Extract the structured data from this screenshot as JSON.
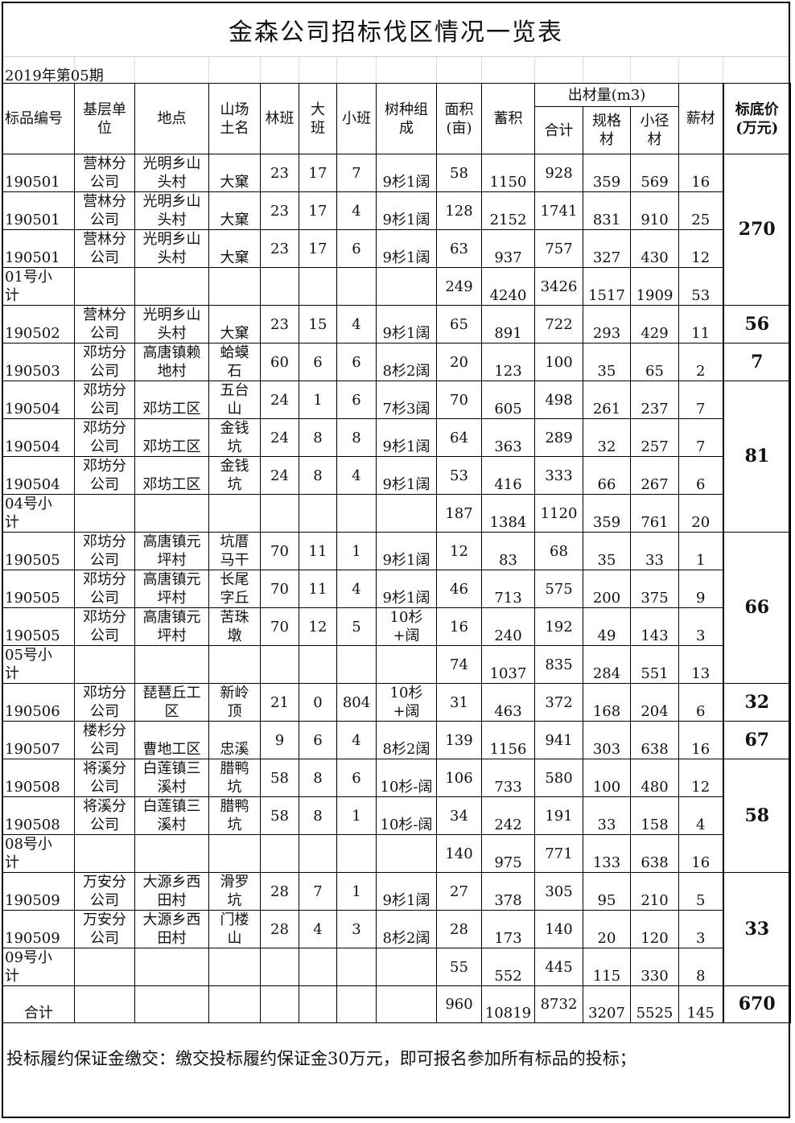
{
  "title": "金森公司招标伐区情况一览表",
  "period": "2019年第05期",
  "headers": {
    "id": "标品编号",
    "unit": "基层单\n位",
    "place": "地点",
    "name": "山场\n土名",
    "linban": "林班",
    "daban": "大\n班",
    "xiaoban": "小班",
    "species": "树种组\n成",
    "area": "面积\n(亩)",
    "stock": "蓄积",
    "output": "出材量(m3)",
    "total": "合计",
    "guige": "规格\n材",
    "xiaojing": "小径\n材",
    "xin": "薪材",
    "price": "标底价\n(万元)"
  },
  "rows": [
    [
      "190501",
      "营林分\n公司",
      "光明乡山\n头村",
      "大窠",
      "23",
      "17",
      "7",
      "9杉1阔",
      "58",
      "1150",
      "928",
      "359",
      "569",
      "16"
    ],
    [
      "190501",
      "营林分\n公司",
      "光明乡山\n头村",
      "大窠",
      "23",
      "17",
      "4",
      "9杉1阔",
      "128",
      "2152",
      "1741",
      "831",
      "910",
      "25"
    ],
    [
      "190501",
      "营林分\n公司",
      "光明乡山\n头村",
      "大窠",
      "23",
      "17",
      "6",
      "9杉1阔",
      "63",
      "937",
      "757",
      "327",
      "430",
      "12"
    ],
    [
      "01号小\n计",
      "",
      "",
      "",
      "",
      "",
      "",
      "",
      "249",
      "4240",
      "3426",
      "1517",
      "1909",
      "53"
    ],
    [
      "190502",
      "营林分\n公司",
      "光明乡山\n头村",
      "大窠",
      "23",
      "15",
      "4",
      "9杉1阔",
      "65",
      "891",
      "722",
      "293",
      "429",
      "11"
    ],
    [
      "190503",
      "邓坊分\n公司",
      "高唐镇赖\n地村",
      "蛤蟆\n石",
      "60",
      "6",
      "6",
      "8杉2阔",
      "20",
      "123",
      "100",
      "35",
      "65",
      "2"
    ],
    [
      "190504",
      "邓坊分\n公司",
      "邓坊工区",
      "五台\n山",
      "24",
      "1",
      "6",
      "7杉3阔",
      "70",
      "605",
      "498",
      "261",
      "237",
      "7"
    ],
    [
      "190504",
      "邓坊分\n公司",
      "邓坊工区",
      "金钱\n坑",
      "24",
      "8",
      "8",
      "9杉1阔",
      "64",
      "363",
      "289",
      "32",
      "257",
      "7"
    ],
    [
      "190504",
      "邓坊分\n公司",
      "邓坊工区",
      "金钱\n坑",
      "24",
      "8",
      "4",
      "9杉1阔",
      "53",
      "416",
      "333",
      "66",
      "267",
      "6"
    ],
    [
      "04号小\n计",
      "",
      "",
      "",
      "",
      "",
      "",
      "",
      "187",
      "1384",
      "1120",
      "359",
      "761",
      "20"
    ],
    [
      "190505",
      "邓坊分\n公司",
      "高唐镇元\n坪村",
      "坑厝\n马干",
      "70",
      "11",
      "1",
      "9杉1阔",
      "12",
      "83",
      "68",
      "35",
      "33",
      "1"
    ],
    [
      "190505",
      "邓坊分\n公司",
      "高唐镇元\n坪村",
      "长尾\n字丘",
      "70",
      "11",
      "4",
      "9杉1阔",
      "46",
      "713",
      "575",
      "200",
      "375",
      "9"
    ],
    [
      "190505",
      "邓坊分\n公司",
      "高唐镇元\n坪村",
      "苦珠\n墩",
      "70",
      "12",
      "5",
      "10杉+阔",
      "16",
      "240",
      "192",
      "49",
      "143",
      "3"
    ],
    [
      "05号小\n计",
      "",
      "",
      "",
      "",
      "",
      "",
      "",
      "74",
      "1037",
      "835",
      "284",
      "551",
      "13"
    ],
    [
      "190506",
      "邓坊分\n公司",
      "琵琶丘工\n区",
      "新岭\n顶",
      "21",
      "0",
      "804",
      "10杉+阔",
      "31",
      "463",
      "372",
      "168",
      "204",
      "6"
    ],
    [
      "190507",
      "楼杉分\n公司",
      "曹地工区",
      "忠溪",
      "9",
      "6",
      "4",
      "8杉2阔",
      "139",
      "1156",
      "941",
      "303",
      "638",
      "16"
    ],
    [
      "190508",
      "将溪分\n公司",
      "白莲镇三\n溪村",
      "腊鸭\n坑",
      "58",
      "8",
      "6",
      "10杉-阔",
      "106",
      "733",
      "580",
      "100",
      "480",
      "12"
    ],
    [
      "190508",
      "将溪分\n公司",
      "白莲镇三\n溪村",
      "腊鸭\n坑",
      "58",
      "8",
      "1",
      "10杉-阔",
      "34",
      "242",
      "191",
      "33",
      "158",
      "4"
    ],
    [
      "08号小\n计",
      "",
      "",
      "",
      "",
      "",
      "",
      "",
      "140",
      "975",
      "771",
      "133",
      "638",
      "16"
    ],
    [
      "190509",
      "万安分\n公司",
      "大源乡西\n田村",
      "滑罗\n坑",
      "28",
      "7",
      "1",
      "9杉1阔",
      "27",
      "378",
      "305",
      "95",
      "210",
      "5"
    ],
    [
      "190509",
      "万安分\n公司",
      "大源乡西\n田村",
      "门楼\n山",
      "28",
      "4",
      "3",
      "8杉2阔",
      "28",
      "173",
      "140",
      "20",
      "120",
      "3"
    ],
    [
      "09号小\n计",
      "",
      "",
      "",
      "",
      "",
      "",
      "",
      "55",
      "552",
      "445",
      "115",
      "330",
      "8"
    ],
    [
      "合计",
      "",
      "",
      "",
      "",
      "",
      "",
      "",
      "960",
      "10819",
      "8732",
      "3207",
      "5525",
      "145"
    ]
  ],
  "prices": [
    {
      "value": "270",
      "rows": 4
    },
    {
      "value": "56",
      "rows": 1
    },
    {
      "value": "7",
      "rows": 1
    },
    {
      "value": "81",
      "rows": 4
    },
    {
      "value": "66",
      "rows": 4
    },
    {
      "value": "32",
      "rows": 1
    },
    {
      "value": "67",
      "rows": 1
    },
    {
      "value": "58",
      "rows": 3
    },
    {
      "value": "33",
      "rows": 3
    },
    {
      "value": "670",
      "rows": 1
    }
  ],
  "footer": "投标履约保证金缴交：缴交投标履约保证金30万元，即可报名参加所有标品的投标；"
}
